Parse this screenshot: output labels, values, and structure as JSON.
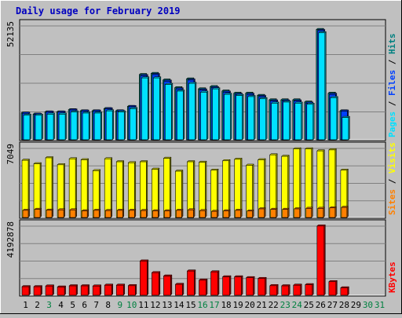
{
  "colors": {
    "background": "#c0c0c0",
    "plot_background": "#c0c0c0",
    "hits": "#008080",
    "files": "#0040ff",
    "pages": "#00e0ff",
    "visits": "#ffff00",
    "sites": "#ff8000",
    "kbytes": "#ff0000",
    "title": "#0000c0",
    "weekend_day": "#008040",
    "weekday": "#000000"
  },
  "chart_data": [
    {
      "type": "bar",
      "title": "Daily usage for February 2019",
      "categories": [
        "1",
        "2",
        "3",
        "4",
        "5",
        "6",
        "7",
        "8",
        "9",
        "10",
        "11",
        "12",
        "13",
        "14",
        "15",
        "16",
        "17",
        "18",
        "19",
        "20",
        "21",
        "22",
        "23",
        "24",
        "25",
        "26",
        "27",
        "28",
        "29",
        "30",
        "31"
      ],
      "weekend_categories": [
        "3",
        "9",
        "10",
        "16",
        "17",
        "23",
        "24",
        "30",
        "31"
      ],
      "ylabel_parts": [
        "Pages",
        "Files",
        "Hits"
      ],
      "ymax_label": "52135",
      "ylim": [
        0,
        52135
      ],
      "grid": true,
      "series": [
        {
          "name": "Hits",
          "color_key": "hits",
          "values": [
            12500,
            12000,
            13000,
            13000,
            14000,
            13500,
            13500,
            14500,
            13500,
            15500,
            30000,
            30500,
            27500,
            24000,
            28000,
            23500,
            24500,
            22500,
            21500,
            21500,
            20500,
            18500,
            18500,
            18500,
            17500,
            50500,
            21500,
            13500,
            0,
            0,
            0
          ]
        },
        {
          "name": "Files",
          "color_key": "files",
          "values": [
            12400,
            11900,
            12900,
            12900,
            13900,
            13400,
            13400,
            14400,
            13400,
            15400,
            29500,
            30000,
            27000,
            23500,
            27500,
            23000,
            24000,
            22000,
            21000,
            21000,
            20000,
            18000,
            18000,
            18000,
            17000,
            50000,
            21000,
            13400,
            0,
            0,
            0
          ]
        },
        {
          "name": "Pages",
          "color_key": "pages",
          "values": [
            11500,
            11500,
            12000,
            12000,
            13000,
            12500,
            12500,
            13500,
            13000,
            14500,
            28500,
            28500,
            25500,
            22500,
            26000,
            22000,
            23500,
            21000,
            20500,
            20000,
            19000,
            17000,
            17500,
            17000,
            16500,
            49000,
            19500,
            10500,
            0,
            0,
            0
          ]
        }
      ]
    },
    {
      "type": "bar",
      "categories": [
        "1",
        "2",
        "3",
        "4",
        "5",
        "6",
        "7",
        "8",
        "9",
        "10",
        "11",
        "12",
        "13",
        "14",
        "15",
        "16",
        "17",
        "18",
        "19",
        "20",
        "21",
        "22",
        "23",
        "24",
        "25",
        "26",
        "27",
        "28",
        "29",
        "30",
        "31"
      ],
      "ylabel_parts": [
        "Sites",
        "Visits"
      ],
      "ymax_label": "7049",
      "ylim": [
        0,
        7049
      ],
      "grid": true,
      "series": [
        {
          "name": "Visits",
          "color_key": "visits",
          "values": [
            5850,
            5500,
            6100,
            5400,
            6000,
            5900,
            4800,
            6000,
            5700,
            5600,
            5700,
            4950,
            6050,
            4750,
            5700,
            5650,
            4850,
            5800,
            5950,
            5350,
            5900,
            6400,
            6250,
            7000,
            7000,
            6800,
            6900,
            4850,
            0,
            0,
            0
          ]
        },
        {
          "name": "Sites",
          "color_key": "sites",
          "values": [
            800,
            900,
            820,
            850,
            850,
            750,
            800,
            780,
            800,
            800,
            780,
            750,
            750,
            800,
            850,
            770,
            700,
            750,
            800,
            730,
            950,
            900,
            900,
            950,
            1000,
            1000,
            1050,
            1100,
            0,
            0,
            0
          ]
        }
      ]
    },
    {
      "type": "bar",
      "categories": [
        "1",
        "2",
        "3",
        "4",
        "5",
        "6",
        "7",
        "8",
        "9",
        "10",
        "11",
        "12",
        "13",
        "14",
        "15",
        "16",
        "17",
        "18",
        "19",
        "20",
        "21",
        "22",
        "23",
        "24",
        "25",
        "26",
        "27",
        "28",
        "29",
        "30",
        "31"
      ],
      "ylabel_parts": [
        "KBytes"
      ],
      "ymax_label": "4192878",
      "ylim": [
        0,
        4192878
      ],
      "grid": true,
      "series": [
        {
          "name": "KBytes",
          "color_key": "kbytes",
          "values": [
            560000,
            560000,
            600000,
            540000,
            610000,
            610000,
            600000,
            650000,
            650000,
            620000,
            2100000,
            1400000,
            1200000,
            700000,
            1500000,
            950000,
            1450000,
            1150000,
            1150000,
            1100000,
            1050000,
            620000,
            610000,
            650000,
            680000,
            4200000,
            860000,
            490000,
            0,
            0,
            0
          ]
        }
      ]
    }
  ]
}
